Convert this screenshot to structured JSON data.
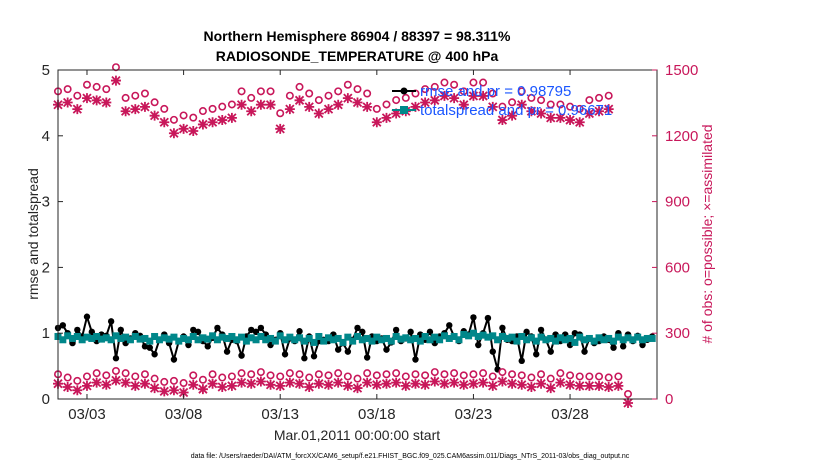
{
  "chart_data": {
    "type": "line",
    "title_line1": "Northern Hemisphere 86904 / 88397 = 98.311%",
    "title_line2": "RADIOSONDE_TEMPERATURE @ 400 hPa",
    "xlabel": "Mar.01,2011 00:00:00 start",
    "ylabel_left": "rmse and totalspread",
    "ylabel_right": "# of obs: o=possible; ×=assimilated",
    "footer": "data file: /Users/raeder/DAI/ATM_forcXX/CAM6_setup/f.e21.FHIST_BGC.f09_025.CAM6assim.011/Diags_NTrS_2011-03/obs_diag_output.nc",
    "x_range_days": [
      1.5,
      32.5
    ],
    "x_ticks": [
      {
        "day": 3,
        "label": "03/03"
      },
      {
        "day": 8,
        "label": "03/08"
      },
      {
        "day": 13,
        "label": "03/13"
      },
      {
        "day": 18,
        "label": "03/18"
      },
      {
        "day": 23,
        "label": "03/23"
      },
      {
        "day": 28,
        "label": "03/28"
      }
    ],
    "ylim_left": [
      0,
      5
    ],
    "yticks_left": [
      "0",
      "1",
      "2",
      "3",
      "4",
      "5"
    ],
    "ylim_right": [
      0,
      1500
    ],
    "yticks_right": [
      "0",
      "300",
      "600",
      "900",
      "1200",
      "1500"
    ],
    "legend": [
      {
        "label": "rmse     and pr = 0.98795",
        "color": "#000000"
      },
      {
        "label": "totalspread     and pr = 0.96671",
        "color": "#00878a"
      }
    ],
    "series": [
      {
        "name": "rmse",
        "axis": "left",
        "color": "#000000",
        "values": [
          1.08,
          1.12,
          1.0,
          0.85,
          1.05,
          0.95,
          1.25,
          1.02,
          0.88,
          0.98,
          0.96,
          1.18,
          0.62,
          1.05,
          0.85,
          0.92,
          1.0,
          0.96,
          0.8,
          0.78,
          0.68,
          0.9,
          0.98,
          0.85,
          0.6,
          0.88,
          0.95,
          0.82,
          1.05,
          1.02,
          0.88,
          0.8,
          0.93,
          1.08,
          0.98,
          0.72,
          0.9,
          0.88,
          0.66,
          0.95,
          1.05,
          1.02,
          1.08,
          0.98,
          0.82,
          0.9,
          1.0,
          0.68,
          0.92,
          0.88,
          1.03,
          0.62,
          0.95,
          0.65,
          0.88,
          0.9,
          0.88,
          0.98,
          0.75,
          0.85,
          0.72,
          0.9,
          1.08,
          1.02,
          0.63,
          0.95,
          0.88,
          0.92,
          0.75,
          0.86,
          1.05,
          0.88,
          0.92,
          1.02,
          0.6,
          0.98,
          0.9,
          1.02,
          0.85,
          0.95,
          1.0,
          1.12,
          0.95,
          0.88,
          1.03,
          0.98,
          1.24,
          0.82,
          1.0,
          1.23,
          0.72,
          0.45,
          1.08,
          0.9,
          0.88,
          0.95,
          0.58,
          1.02,
          0.95,
          0.68,
          1.05,
          0.9,
          0.72,
          0.98,
          0.88,
          0.98,
          0.82,
          1.0,
          0.98,
          0.72,
          0.92,
          0.85,
          0.88,
          0.95,
          0.9,
          0.78,
          1.0,
          0.8,
          0.98,
          0.88,
          0.96,
          0.82,
          0.9,
          0.95
        ],
        "start_day": 1.5,
        "step_days": 0.25
      },
      {
        "name": "totalspread",
        "axis": "left",
        "color": "#00878a",
        "values": [
          0.95,
          0.9,
          0.96,
          0.92,
          0.95,
          0.9,
          0.94,
          0.92,
          0.95,
          0.91,
          0.93,
          0.9,
          0.96,
          0.92,
          0.94,
          0.9,
          0.95,
          0.91,
          0.92,
          0.88,
          0.95,
          0.9,
          0.93,
          0.91,
          0.94,
          0.88,
          0.92,
          0.9,
          0.95,
          0.9,
          0.93,
          0.91,
          0.96,
          0.9,
          0.94,
          0.92,
          0.95,
          0.9,
          0.94,
          0.88,
          0.93,
          0.9,
          0.95,
          0.9,
          0.92,
          0.88,
          0.96,
          0.9,
          0.94,
          0.9,
          0.93,
          0.88,
          0.92,
          0.86,
          0.95,
          0.88,
          0.93,
          0.9,
          0.92,
          0.86,
          0.94,
          0.88,
          0.95,
          0.9,
          0.92,
          0.88,
          0.94,
          0.9,
          0.92,
          0.88,
          0.95,
          0.91,
          0.93,
          0.9,
          0.92,
          0.88,
          0.95,
          0.9,
          0.94,
          0.9,
          0.96,
          0.92,
          0.95,
          0.9,
          0.98,
          0.96,
          1.0,
          0.95,
          0.97,
          0.94,
          0.96,
          0.9,
          0.95,
          0.92,
          0.94,
          0.88,
          0.95,
          0.9,
          0.93,
          0.88,
          0.94,
          0.9,
          0.92,
          0.88,
          0.93,
          0.9,
          0.92,
          0.86,
          0.94,
          0.9,
          0.92,
          0.88,
          0.93,
          0.9,
          0.92,
          0.88,
          0.94,
          0.9,
          0.93,
          0.9,
          0.94,
          0.9,
          0.92,
          0.92
        ],
        "start_day": 1.5,
        "step_days": 0.25
      },
      {
        "name": "possible obs (top)",
        "axis": "right",
        "color": "#c8175a",
        "marker": "o",
        "values": [
          1380,
          1390,
          1360,
          1410,
          1400,
          1390,
          1490,
          1350,
          1360,
          1370,
          1330,
          1300,
          1250,
          1270,
          1260,
          1290,
          1300,
          1310,
          1320,
          1380,
          1350,
          1380,
          1380,
          1280,
          1360,
          1400,
          1370,
          1340,
          1360,
          1380,
          1410,
          1390,
          1370,
          1300,
          1320,
          1340,
          1350,
          1370,
          1390,
          1400,
          1420,
          1410,
          1380,
          1420,
          1420,
          1370,
          1310,
          1330,
          1380,
          1350,
          1340,
          1320,
          1320,
          1310,
          1300,
          1340,
          1350,
          1360
        ],
        "start_day": 1.5,
        "step_days": 0.5
      },
      {
        "name": "assimilated obs (top)",
        "axis": "right",
        "color": "#c8175a",
        "marker": "x",
        "values": [
          1360,
          1370,
          1340,
          1390,
          1380,
          1370,
          1470,
          1330,
          1340,
          1350,
          1310,
          1280,
          1230,
          1250,
          1240,
          1270,
          1280,
          1290,
          1300,
          1360,
          1330,
          1360,
          1360,
          1250,
          1340,
          1380,
          1350,
          1320,
          1340,
          1360,
          1390,
          1370,
          1350,
          1280,
          1300,
          1320,
          1330,
          1350,
          1370,
          1380,
          1400,
          1390,
          1360,
          1400,
          1400,
          1350,
          1290,
          1310,
          1360,
          1330,
          1320,
          1300,
          1300,
          1290,
          1280,
          1320,
          1330,
          1340
        ],
        "start_day": 1.5,
        "step_days": 0.5
      },
      {
        "name": "possible obs (bottom)",
        "axis": "right",
        "color": "#c8175a",
        "marker": "o",
        "values": [
          90,
          75,
          60,
          80,
          95,
          85,
          105,
          95,
          80,
          90,
          70,
          55,
          60,
          50,
          85,
          65,
          90,
          75,
          80,
          95,
          90,
          100,
          85,
          80,
          95,
          90,
          75,
          90,
          85,
          95,
          80,
          70,
          95,
          85,
          90,
          95,
          80,
          90,
          85,
          100,
          90,
          95,
          85,
          90,
          95,
          80,
          100,
          90,
          85,
          75,
          90,
          70,
          95,
          85,
          80,
          80,
          80,
          75,
          80,
          0
        ],
        "start_day": 1.5,
        "step_days": 0.5
      },
      {
        "name": "assimilated obs (bottom)",
        "axis": "right",
        "color": "#c8175a",
        "marker": "x",
        "values": [
          88,
          73,
          58,
          78,
          93,
          83,
          103,
          93,
          78,
          88,
          68,
          53,
          58,
          48,
          83,
          63,
          88,
          73,
          78,
          93,
          88,
          98,
          83,
          78,
          93,
          88,
          73,
          88,
          83,
          93,
          78,
          68,
          93,
          83,
          88,
          93,
          78,
          88,
          83,
          98,
          88,
          93,
          83,
          88,
          93,
          78,
          98,
          88,
          83,
          73,
          88,
          68,
          93,
          83,
          78,
          78,
          78,
          73,
          78,
          0
        ],
        "start_day": 1.5,
        "step_days": 0.5
      }
    ]
  }
}
